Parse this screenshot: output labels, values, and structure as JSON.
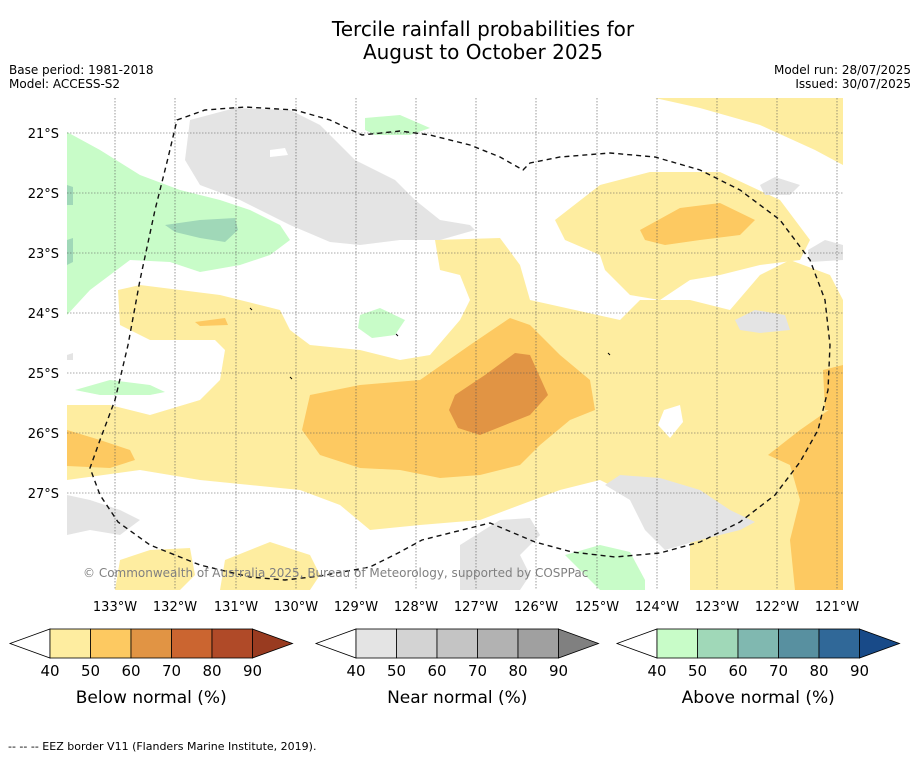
{
  "title_line1": "Tercile rainfall probabilities for",
  "title_line2": "August to October 2025",
  "base_period": "Base period: 1981-2018",
  "model": "Model: ACCESS-S2",
  "model_run": "Model run: 28/07/2025",
  "issued": "Issued: 30/07/2025",
  "copyright": "© Commonwealth of Australia 2025, Bureau of Meteorology, supported by COSPPac",
  "footer": "--  --  -- EEZ border V11 (Flanders Marine Institute, 2019).",
  "lat_labels": [
    "21°S",
    "22°S",
    "23°S",
    "24°S",
    "25°S",
    "26°S",
    "27°S"
  ],
  "lon_labels": [
    "133°W",
    "132°W",
    "131°W",
    "130°W",
    "129°W",
    "128°W",
    "127°W",
    "126°W",
    "125°W",
    "124°W",
    "123°W",
    "122°W",
    "121°W"
  ],
  "legends": [
    {
      "title": "Below normal (%)",
      "ticks": [
        "40",
        "50",
        "60",
        "70",
        "80",
        "90"
      ],
      "colors": [
        "#ffffff",
        "#feeda0",
        "#fdc961",
        "#e19444",
        "#cb6530",
        "#b04a28",
        "#993b20"
      ]
    },
    {
      "title": "Near normal (%)",
      "ticks": [
        "40",
        "50",
        "60",
        "70",
        "80",
        "90"
      ],
      "colors": [
        "#ffffff",
        "#e4e4e4",
        "#d3d3d3",
        "#c4c4c4",
        "#b2b2b2",
        "#a0a0a0",
        "#808080"
      ]
    },
    {
      "title": "Above normal (%)",
      "ticks": [
        "40",
        "50",
        "60",
        "70",
        "80",
        "90"
      ],
      "colors": [
        "#ffffff",
        "#c8fcc8",
        "#a0d8b8",
        "#80b8b0",
        "#5890a0",
        "#306898",
        "#184a88"
      ]
    }
  ]
}
